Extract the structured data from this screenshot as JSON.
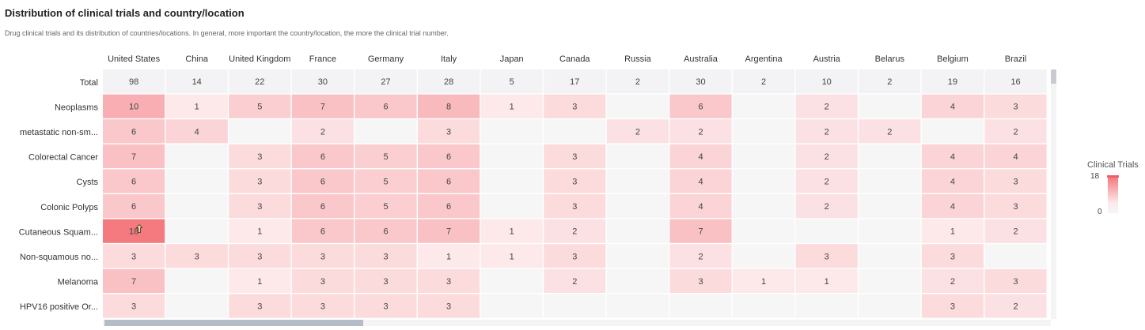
{
  "header": {
    "title": "Distribution of clinical trials and country/location",
    "subtitle": "Drug clinical trials and its distribution of countries/locations. In general, more important the country/location, the more the clinical trial number."
  },
  "legend": {
    "title": "Clinical Trials",
    "max_label": "18",
    "min_label": "0"
  },
  "colors": {
    "high": "#f47a80",
    "low": "#fdeef0",
    "total_row": "#f3f3f5",
    "empty": "#f6f6f7"
  },
  "chart_data": {
    "type": "heatmap",
    "columns": [
      "United States",
      "China",
      "United Kingdom",
      "France",
      "Germany",
      "Italy",
      "Japan",
      "Canada",
      "Russia",
      "Australia",
      "Argentina",
      "Austria",
      "Belarus",
      "Belgium",
      "Brazil"
    ],
    "rows": [
      "Total",
      "Neoplasms",
      "metastatic non-sm...",
      "Colorectal Cancer",
      "Cysts",
      "Colonic Polyps",
      "Cutaneous Squam...",
      "Non-squamous no...",
      "Melanoma",
      "HPV16 positive Or..."
    ],
    "values": [
      [
        98,
        14,
        22,
        30,
        27,
        28,
        5,
        17,
        2,
        30,
        2,
        10,
        2,
        19,
        16
      ],
      [
        10,
        1,
        5,
        7,
        6,
        8,
        1,
        3,
        null,
        6,
        null,
        2,
        null,
        4,
        3
      ],
      [
        6,
        4,
        null,
        2,
        null,
        3,
        null,
        null,
        2,
        2,
        null,
        2,
        2,
        null,
        2
      ],
      [
        7,
        null,
        3,
        6,
        5,
        6,
        null,
        3,
        null,
        4,
        null,
        2,
        null,
        4,
        4
      ],
      [
        6,
        null,
        3,
        6,
        5,
        6,
        null,
        3,
        null,
        4,
        null,
        2,
        null,
        4,
        3
      ],
      [
        6,
        null,
        3,
        6,
        5,
        6,
        null,
        3,
        null,
        4,
        null,
        2,
        null,
        4,
        3
      ],
      [
        18,
        null,
        1,
        6,
        6,
        7,
        1,
        2,
        null,
        7,
        null,
        null,
        null,
        1,
        2
      ],
      [
        3,
        3,
        3,
        3,
        3,
        1,
        1,
        3,
        null,
        2,
        null,
        3,
        null,
        3,
        null
      ],
      [
        7,
        null,
        1,
        3,
        3,
        3,
        null,
        2,
        null,
        3,
        1,
        1,
        null,
        2,
        3
      ],
      [
        3,
        null,
        3,
        3,
        3,
        3,
        null,
        null,
        null,
        null,
        null,
        null,
        null,
        3,
        2
      ]
    ],
    "color_range": [
      0,
      18
    ],
    "legend_placement": "right",
    "highlighted_cell": {
      "row": "Cutaneous Squam...",
      "column": "United States",
      "marker": "cursor"
    }
  }
}
